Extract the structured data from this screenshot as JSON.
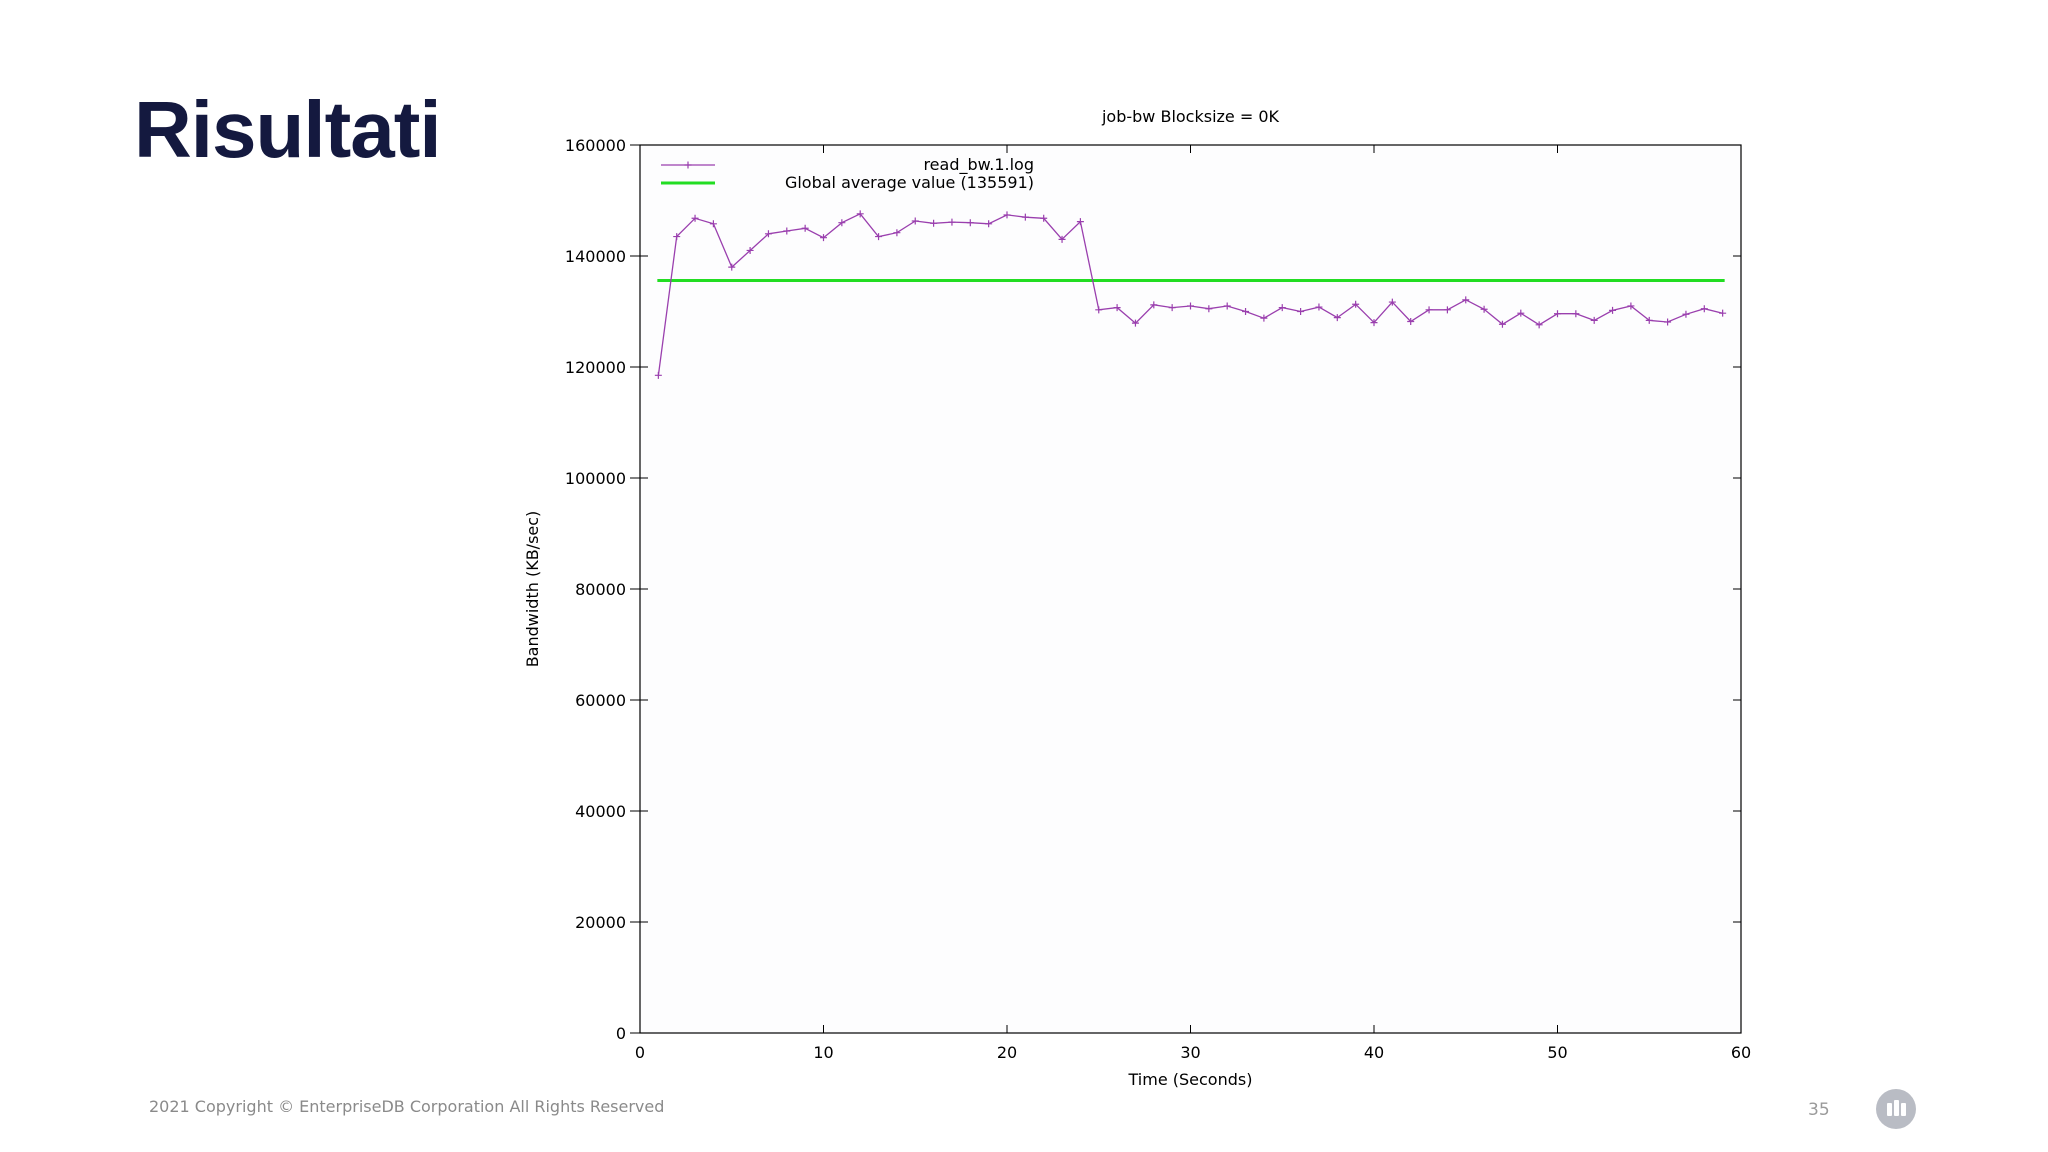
{
  "slide": {
    "title": "Risultati",
    "copyright": "2021 Copyright © EnterpriseDB Corporation All Rights Reserved",
    "page_number": "35",
    "logo_icon": "edb-logo-icon"
  },
  "colors": {
    "title": "#14193f",
    "series_read": "#9a3fae",
    "series_average": "#22dd22",
    "axis": "#000000"
  },
  "chart_data": {
    "type": "line",
    "title": "job-bw  Blocksize = 0K",
    "xlabel": "Time (Seconds)",
    "ylabel": "Bandwidth (KB/sec)",
    "xlim": [
      0,
      60
    ],
    "ylim": [
      0,
      160000
    ],
    "x_ticks": [
      0,
      10,
      20,
      30,
      40,
      50,
      60
    ],
    "y_ticks": [
      0,
      20000,
      40000,
      60000,
      80000,
      100000,
      120000,
      140000,
      160000
    ],
    "grid": false,
    "legend_position": "top-left",
    "legend_labels": [
      "read_bw.1.log",
      "Global average value (135591)"
    ],
    "series": [
      {
        "name": "read_bw.1.log",
        "marker": "plus",
        "x": [
          1,
          2,
          3,
          4,
          5,
          6,
          7,
          8,
          9,
          10,
          11,
          12,
          13,
          14,
          15,
          16,
          17,
          18,
          19,
          20,
          21,
          22,
          23,
          24,
          25,
          26,
          27,
          28,
          29,
          30,
          31,
          32,
          33,
          34,
          35,
          36,
          37,
          38,
          39,
          40,
          41,
          42,
          43,
          44,
          45,
          46,
          47,
          48,
          49,
          50,
          51,
          52,
          53,
          54,
          55,
          56,
          57,
          58,
          59
        ],
        "values": [
          118500,
          143500,
          146800,
          145800,
          138000,
          141000,
          144000,
          144500,
          145000,
          143300,
          146000,
          147600,
          143500,
          144200,
          146300,
          145900,
          146100,
          146000,
          145800,
          147400,
          147000,
          146800,
          143000,
          146200,
          130300,
          130700,
          127900,
          131200,
          130700,
          131000,
          130500,
          131000,
          130000,
          128800,
          130700,
          130000,
          130800,
          128900,
          131300,
          128000,
          131700,
          128200,
          130300,
          130300,
          132100,
          130400,
          127700,
          129700,
          127600,
          129600,
          129600,
          128400,
          130200,
          131000,
          128400,
          128100,
          129500,
          130500,
          129700
        ]
      },
      {
        "name": "Global average value (135591)",
        "x": [
          1,
          59
        ],
        "values": [
          135591,
          135591
        ]
      }
    ]
  }
}
